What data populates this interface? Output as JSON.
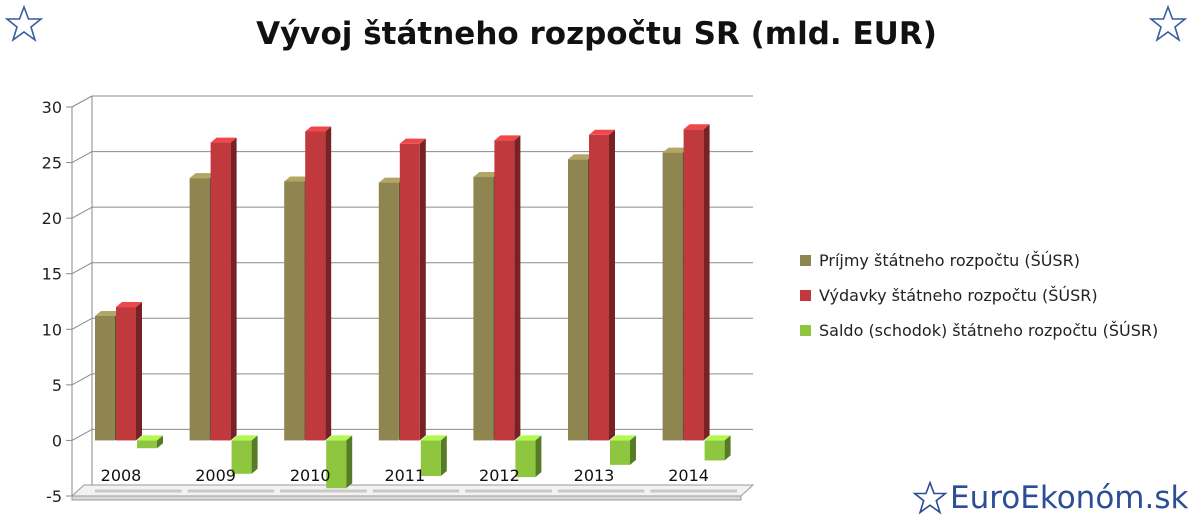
{
  "chart_data": {
    "type": "bar",
    "title": "Vývoj štátneho rozpočtu SR (mld. EUR)",
    "categories": [
      "2008",
      "2009",
      "2010",
      "2011",
      "2012",
      "2013",
      "2014"
    ],
    "series": [
      {
        "name": "Príjmy štátneho rozpočtu (ŠÚSR)",
        "color": "#8f8550",
        "values": [
          11.2,
          23.6,
          23.3,
          23.2,
          23.7,
          25.3,
          25.9
        ]
      },
      {
        "name": "Výdavky štátneho rozpočtu (ŠÚSR)",
        "color": "#c0393c",
        "values": [
          12.0,
          26.8,
          27.8,
          26.7,
          27.0,
          27.5,
          28.0
        ]
      },
      {
        "name": "Saldo (schodok) štátneho rozpočtu (ŠÚSR)",
        "color": "#8ec63f",
        "values": [
          -0.7,
          -3.0,
          -4.3,
          -3.2,
          -3.3,
          -2.2,
          -1.8
        ]
      }
    ],
    "ylim": [
      -5,
      30
    ],
    "yticks": [
      "-5",
      "0",
      "5",
      "10",
      "15",
      "20",
      "25",
      "30"
    ],
    "grid": true,
    "legend_position": "right"
  },
  "brand": {
    "text": "EuroEkonóm.sk"
  },
  "colors": {
    "brand": "#2d4e96",
    "star": "#3a5ba0"
  },
  "icons": {
    "corner_left": "star-outline-icon",
    "corner_right": "star-outline-icon",
    "brand": "star-outline-icon"
  }
}
